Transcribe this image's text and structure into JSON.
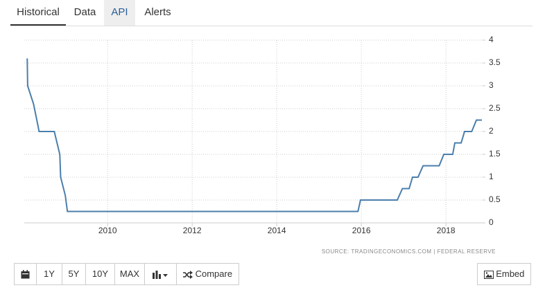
{
  "tabs": [
    "Historical",
    "Data",
    "API",
    "Alerts"
  ],
  "chart_data": {
    "type": "line",
    "x": [
      2008.1,
      2008.11,
      2008.25,
      2008.36,
      2008.38,
      2008.74,
      2008.87,
      2008.89,
      2009.0,
      2009.05,
      2015.92,
      2015.98,
      2016.85,
      2016.97,
      2017.13,
      2017.21,
      2017.34,
      2017.46,
      2017.84,
      2017.95,
      2018.16,
      2018.21,
      2018.36,
      2018.44,
      2018.61,
      2018.72,
      2018.85
    ],
    "values": [
      3.6,
      3.0,
      2.6,
      2.1,
      2.0,
      2.0,
      1.5,
      1.0,
      0.6,
      0.25,
      0.25,
      0.5,
      0.5,
      0.75,
      0.75,
      1.0,
      1.0,
      1.25,
      1.25,
      1.5,
      1.5,
      1.75,
      1.75,
      2.0,
      2.0,
      2.25,
      2.25
    ],
    "color": "#4a7eab",
    "xlim": [
      2008.03,
      2018.85
    ],
    "xticks": [
      2010,
      2012,
      2014,
      2016,
      2018
    ],
    "ylim": [
      0,
      4
    ],
    "yticks": [
      0,
      0.5,
      1,
      1.5,
      2,
      2.5,
      3,
      3.5,
      4
    ],
    "grid": true,
    "source": "SOURCE: TRADINGECONOMICS.COM | FEDERAL RESERVE"
  },
  "buttons": [
    "1Y",
    "5Y",
    "10Y",
    "MAX",
    "Compare"
  ],
  "embed": "Embed"
}
